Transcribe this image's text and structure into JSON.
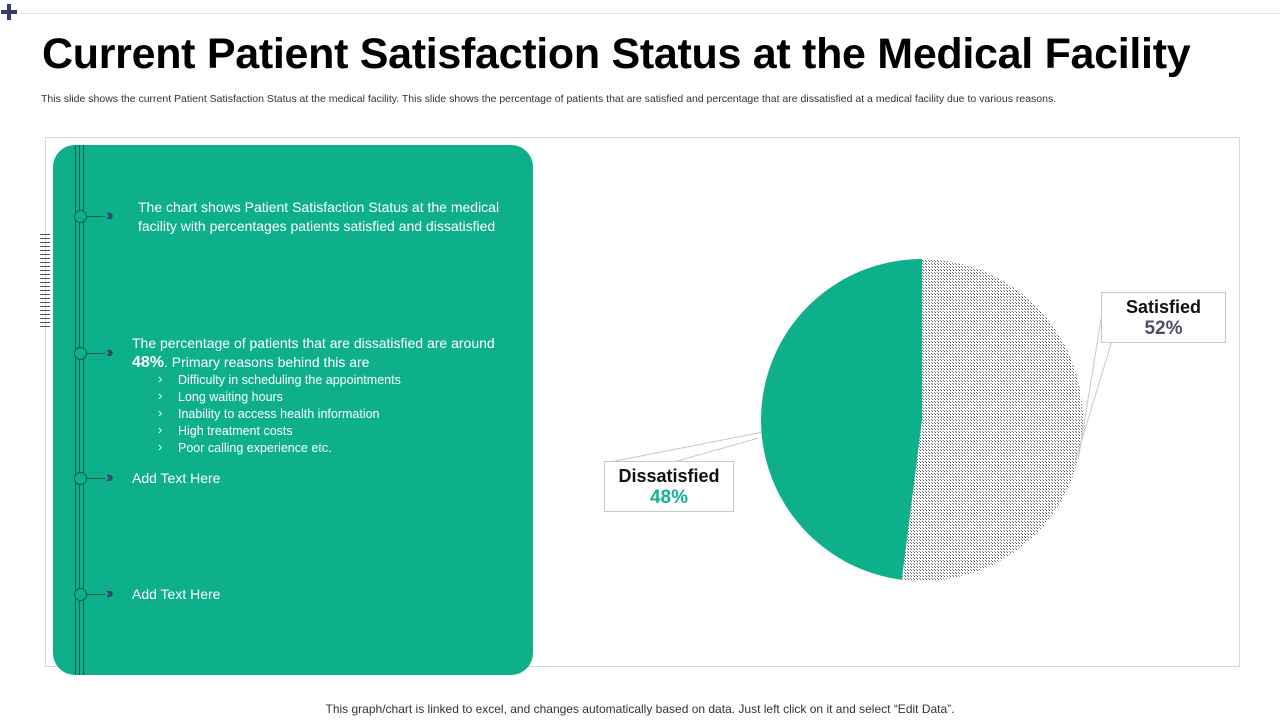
{
  "slide": {
    "title": "Current Patient Satisfaction Status at the Medical Facility",
    "subtitle": "This slide shows the current Patient Satisfaction Status at the medical facility. This slide shows the percentage  of patients that are satisfied and percentage that are dissatisfied at a medical facility due to various reasons.",
    "footer": "This graph/chart is linked to excel, and changes automatically based on data. Just left click on it and select “Edit Data”."
  },
  "panel": {
    "item1": "The chart shows Patient Satisfaction Status at the medical facility with percentages patients satisfied and dissatisfied",
    "item2_lead": "The percentage of patients that are dissatisfied are around ",
    "item2_pct": "48%",
    "item2_tail": ". Primary reasons behind this are",
    "reasons": [
      "Difficulty in scheduling the appointments",
      "Long waiting hours",
      "Inability to access health information",
      "High treatment costs",
      "Poor calling experience etc."
    ],
    "item3": "Add Text Here",
    "item4": "Add Text Here"
  },
  "colors": {
    "green": "#0db08a",
    "satisfied_hatch": "#5a5a5a",
    "title": "#000000"
  },
  "chart_data": {
    "type": "pie",
    "title": "",
    "categories": [
      "Satisfied",
      "Dissatisfied"
    ],
    "values": [
      52,
      48
    ],
    "labels": [
      "52%",
      "48%"
    ],
    "series": [
      {
        "name": "Patient Satisfaction",
        "values": [
          52,
          48
        ]
      }
    ],
    "legend": "none"
  }
}
